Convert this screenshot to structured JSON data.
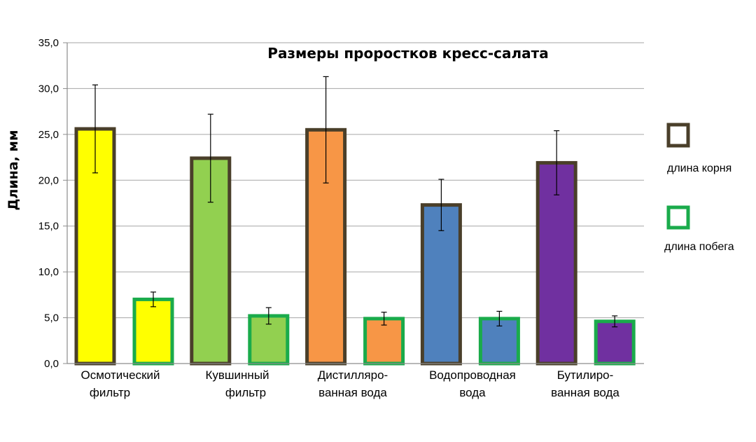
{
  "chart_data": {
    "type": "bar",
    "title": "Размеры проростков кресс-салата",
    "xlabel": "",
    "ylabel": "Длина, мм",
    "ylim": [
      0,
      35
    ],
    "yticks": [
      "0,0",
      "5,0",
      "10,0",
      "15,0",
      "20,0",
      "25,0",
      "30,0",
      "35,0"
    ],
    "grid": true,
    "legend_position": "right",
    "categories": [
      [
        "Осмотический",
        "фильтр"
      ],
      [
        "Кувшинный",
        "фильтр"
      ],
      [
        "Дистилляро-",
        "ванная вода"
      ],
      [
        "Водопроводная",
        "вода"
      ],
      [
        "Бутилиро-",
        "ванная вода"
      ]
    ],
    "category_colors": [
      "#ffff00",
      "#92d050",
      "#f79646",
      "#4f81bd",
      "#7030a0"
    ],
    "series": [
      {
        "name": "длина корня",
        "border_color": "#4a3f2a",
        "values": [
          25.6,
          22.4,
          25.5,
          17.3,
          21.9
        ],
        "errors": [
          4.8,
          4.8,
          5.8,
          2.8,
          3.5
        ]
      },
      {
        "name": "длина побега",
        "border_color": "#1aab4b",
        "values": [
          7.0,
          5.2,
          4.9,
          4.9,
          4.6
        ],
        "errors": [
          0.8,
          0.9,
          0.7,
          0.8,
          0.6
        ]
      }
    ]
  }
}
